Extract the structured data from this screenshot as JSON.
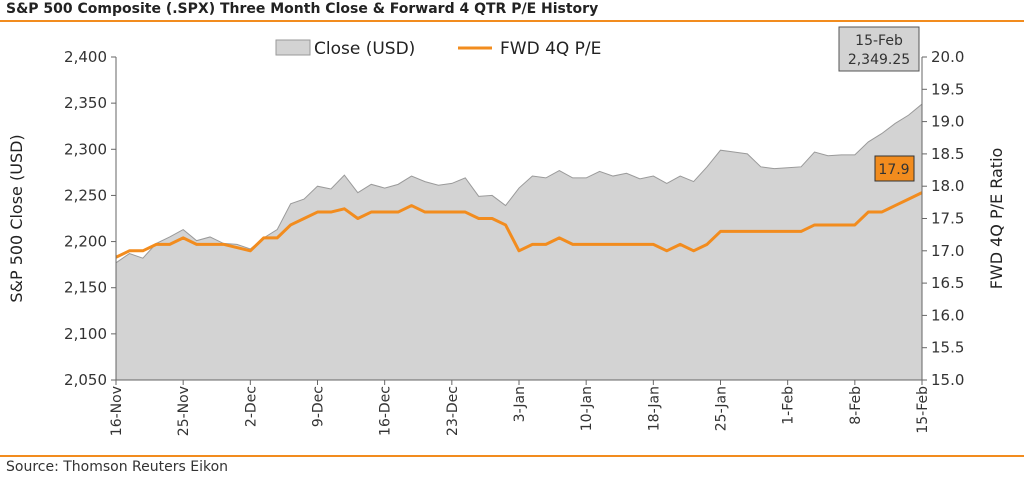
{
  "title": "S&P 500 Composite (.SPX) Three Month Close & Forward 4 QTR P/E History",
  "source": "Source: Thomson Reuters Eikon",
  "colors": {
    "accent": "#f28c1e",
    "area_fill": "#d3d3d3",
    "area_stroke": "#9a9a9a"
  },
  "chart_data": {
    "type": "area",
    "title": "S&P 500 Composite (.SPX) Three Month Close & Forward 4 QTR P/E History",
    "xlabel": "",
    "ylabel": "S&P 500 Close (USD)",
    "y2label": "FWD 4Q P/E Ratio",
    "ylim": [
      2050,
      2400
    ],
    "y2lim": [
      15.0,
      20.0
    ],
    "yticks": [
      "2,050",
      "2,100",
      "2,150",
      "2,200",
      "2,250",
      "2,300",
      "2,350",
      "2,400"
    ],
    "y2ticks": [
      "15.0",
      "15.5",
      "16.0",
      "16.5",
      "17.0",
      "17.5",
      "18.0",
      "18.5",
      "19.0",
      "19.5",
      "20.0"
    ],
    "xticks": [
      "16-Nov",
      "25-Nov",
      "2-Dec",
      "9-Dec",
      "16-Dec",
      "23-Dec",
      "3-Jan",
      "10-Jan",
      "18-Jan",
      "25-Jan",
      "1-Feb",
      "8-Feb",
      "15-Feb"
    ],
    "legend_position": "top-center",
    "grid": false,
    "legend": [
      "Close (USD)",
      "FWD 4Q P/E"
    ],
    "series": [
      {
        "name": "Close (USD)",
        "axis": "left",
        "style": "area",
        "values": [
          2177,
          2187,
          2182,
          2198,
          2205,
          2213,
          2201,
          2205,
          2198,
          2197,
          2192,
          2204,
          2213,
          2241,
          2246,
          2260,
          2257,
          2272,
          2253,
          2262,
          2258,
          2262,
          2271,
          2265,
          2261,
          2263,
          2269,
          2249,
          2250,
          2239,
          2258,
          2271,
          2269,
          2277,
          2269,
          2269,
          2276,
          2271,
          2274,
          2268,
          2271,
          2263,
          2271,
          2265,
          2281,
          2299,
          2297,
          2295,
          2281,
          2279,
          2280,
          2281,
          2297,
          2293,
          2294,
          2294,
          2308,
          2317,
          2328,
          2337,
          2349
        ]
      },
      {
        "name": "FWD 4Q P/E",
        "axis": "right",
        "style": "line",
        "values": [
          16.9,
          17.0,
          17.0,
          17.1,
          17.1,
          17.2,
          17.1,
          17.1,
          17.1,
          17.05,
          17.0,
          17.2,
          17.2,
          17.4,
          17.5,
          17.6,
          17.6,
          17.65,
          17.5,
          17.6,
          17.6,
          17.6,
          17.7,
          17.6,
          17.6,
          17.6,
          17.6,
          17.5,
          17.5,
          17.4,
          17.0,
          17.1,
          17.1,
          17.2,
          17.1,
          17.1,
          17.1,
          17.1,
          17.1,
          17.1,
          17.1,
          17.0,
          17.1,
          17.0,
          17.1,
          17.3,
          17.3,
          17.3,
          17.3,
          17.3,
          17.3,
          17.3,
          17.4,
          17.4,
          17.4,
          17.4,
          17.6,
          17.6,
          17.7,
          17.8,
          17.9
        ]
      }
    ],
    "annotations": [
      {
        "text_date": "15-Feb",
        "text_value": "2,349.25",
        "series": "Close (USD)"
      },
      {
        "text_value": "17.9",
        "series": "FWD 4Q P/E"
      }
    ]
  }
}
